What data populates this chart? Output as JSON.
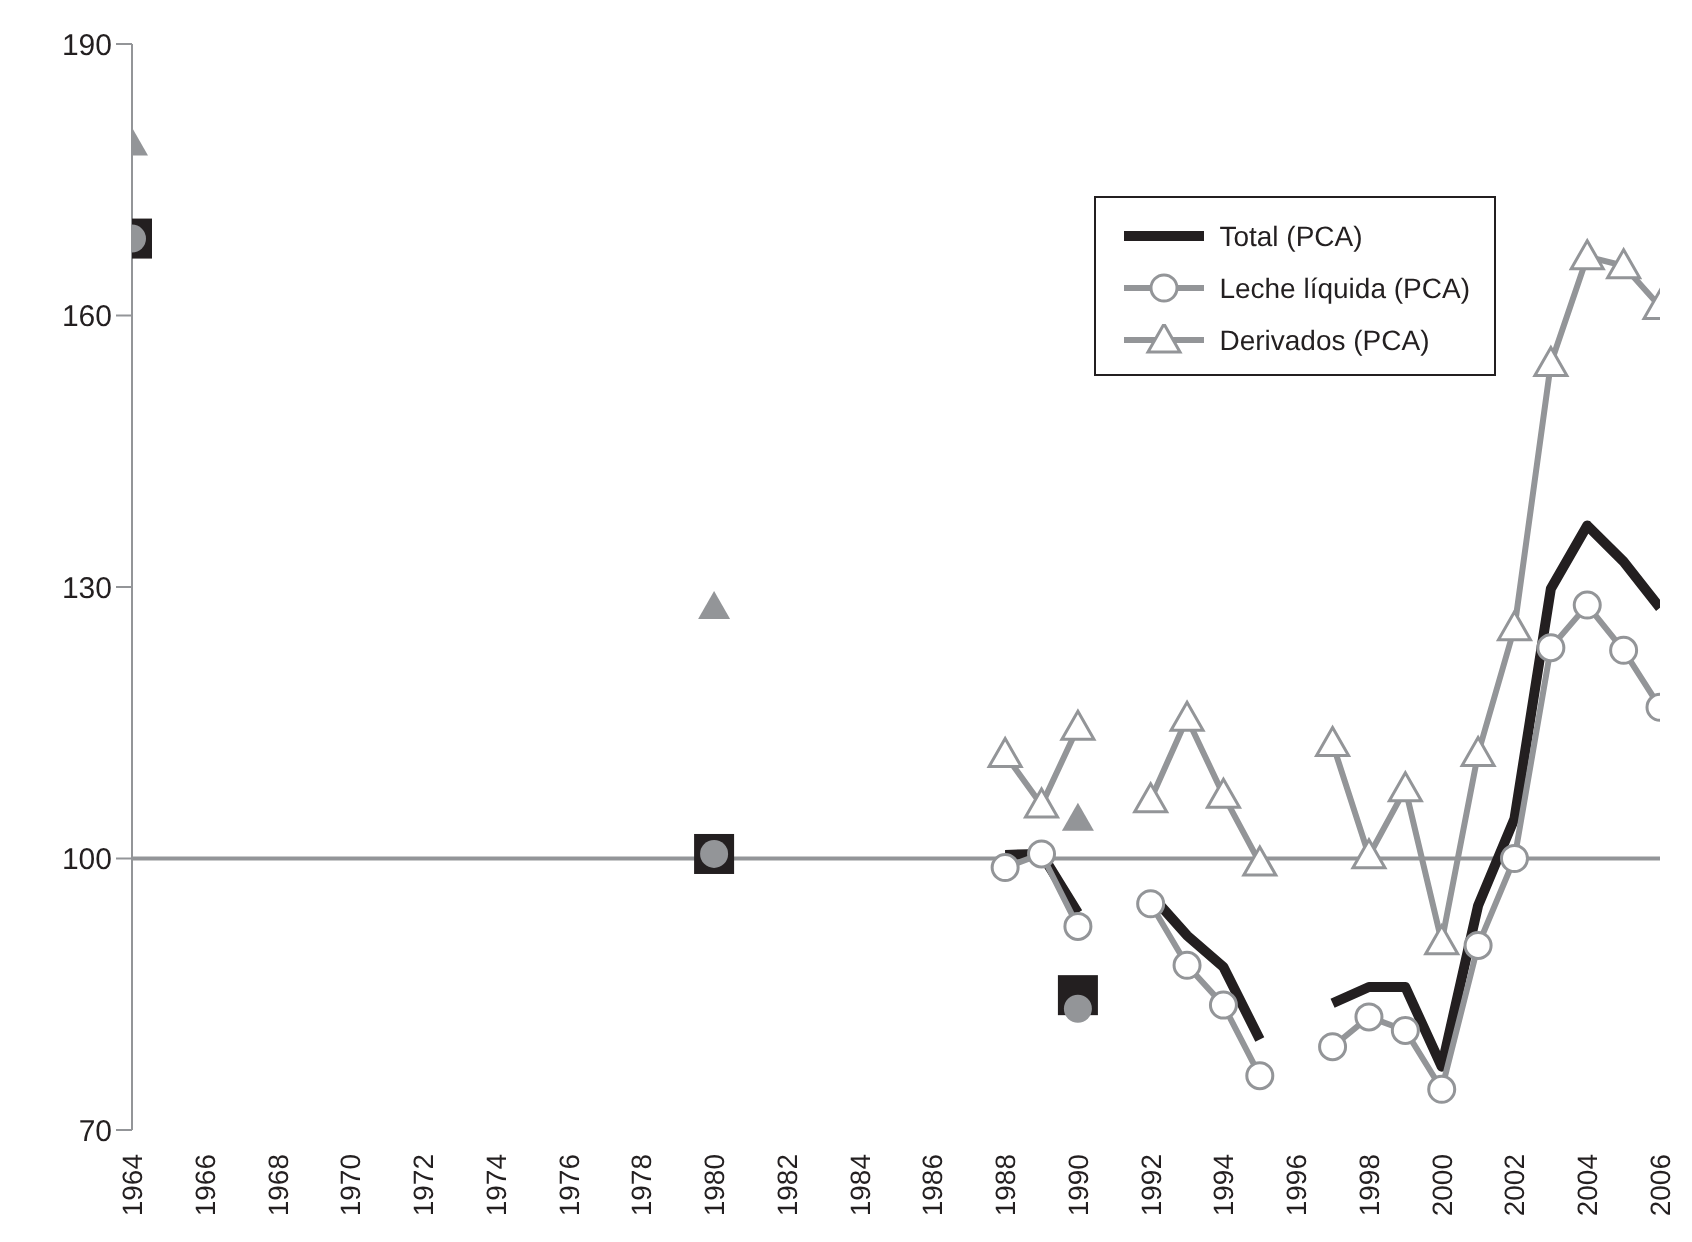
{
  "chart_data": {
    "type": "line",
    "categories": [
      "1964",
      null,
      "1966",
      null,
      "1968",
      null,
      "1970",
      null,
      "1972",
      null,
      "1974",
      null,
      "1976",
      null,
      "1978",
      null,
      "1980",
      null,
      "1982",
      null,
      "1984",
      null,
      "1986",
      null,
      "1988",
      null,
      "1990",
      null,
      "1992",
      null,
      "1994",
      null,
      "1996",
      null,
      "1998",
      null,
      "2000",
      null,
      "2002",
      null,
      "2004",
      null,
      "2006"
    ],
    "series": [
      {
        "name": "Total (PCA)",
        "color": "#231f20",
        "marker": "none",
        "values": [
          null,
          null,
          null,
          null,
          null,
          null,
          null,
          null,
          null,
          null,
          null,
          null,
          null,
          null,
          null,
          null,
          null,
          null,
          null,
          null,
          null,
          null,
          null,
          null,
          100.4,
          100.5,
          94,
          null,
          96,
          91.5,
          88,
          80,
          null,
          84,
          85.8,
          85.8,
          77,
          94.8,
          104.4,
          129.8,
          136.8,
          132.8,
          127.7
        ]
      },
      {
        "name": "Leche líquida (PCA)",
        "color": "#939598",
        "marker": "circle",
        "values": [
          null,
          null,
          null,
          null,
          null,
          null,
          null,
          null,
          null,
          null,
          null,
          null,
          null,
          null,
          null,
          null,
          null,
          null,
          null,
          null,
          null,
          null,
          null,
          null,
          99,
          100.5,
          92.5,
          null,
          95,
          88.2,
          83.8,
          76,
          null,
          79.2,
          82.5,
          81,
          74.5,
          90.4,
          100,
          123.3,
          128,
          123,
          116.7
        ]
      },
      {
        "name": "Derivados (PCA)",
        "color": "#939598",
        "marker": "triangle",
        "values": [
          null,
          null,
          null,
          null,
          null,
          null,
          null,
          null,
          null,
          null,
          null,
          null,
          null,
          null,
          null,
          null,
          null,
          null,
          null,
          null,
          null,
          null,
          null,
          null,
          111.5,
          105.9,
          114.5,
          null,
          106.5,
          115.5,
          107,
          99.5,
          null,
          112.7,
          100.3,
          107.7,
          90.8,
          111.6,
          125.5,
          154.7,
          166.5,
          165.5,
          161
        ]
      },
      {
        "type": "scatter",
        "color": "#231f20",
        "marker": "square",
        "values": [
          168.5,
          null,
          null,
          null,
          null,
          null,
          null,
          null,
          null,
          null,
          null,
          null,
          null,
          null,
          null,
          null,
          100.5,
          null,
          null,
          null,
          null,
          null,
          null,
          null,
          null,
          null,
          84.9,
          null,
          null,
          null,
          null,
          null,
          null,
          null,
          null,
          null,
          null,
          null,
          null,
          null,
          null,
          null,
          null
        ]
      },
      {
        "type": "scatter",
        "color": "#939598",
        "marker": "circle",
        "values": [
          168.5,
          null,
          null,
          null,
          null,
          null,
          null,
          null,
          null,
          null,
          null,
          null,
          null,
          null,
          null,
          null,
          100.5,
          null,
          null,
          null,
          null,
          null,
          null,
          null,
          null,
          null,
          83.4,
          null,
          null,
          null,
          null,
          null,
          null,
          null,
          null,
          null,
          null,
          null,
          null,
          null,
          null,
          null,
          null
        ]
      },
      {
        "type": "scatter",
        "color": "#939598",
        "marker": "triangle",
        "values": [
          179,
          null,
          null,
          null,
          null,
          null,
          null,
          null,
          null,
          null,
          null,
          null,
          null,
          null,
          null,
          null,
          127.8,
          null,
          null,
          null,
          null,
          null,
          null,
          null,
          null,
          null,
          104.4,
          null,
          null,
          null,
          null,
          null,
          null,
          null,
          null,
          null,
          null,
          null,
          null,
          null,
          null,
          null,
          null
        ]
      }
    ],
    "ylim": [
      70,
      190
    ],
    "yticks": [
      70,
      100,
      130,
      160,
      190
    ],
    "ref_lines": [
      {
        "axis": "y",
        "value": 100,
        "color": "#939598"
      }
    ],
    "grid": false,
    "legend": "top right"
  }
}
